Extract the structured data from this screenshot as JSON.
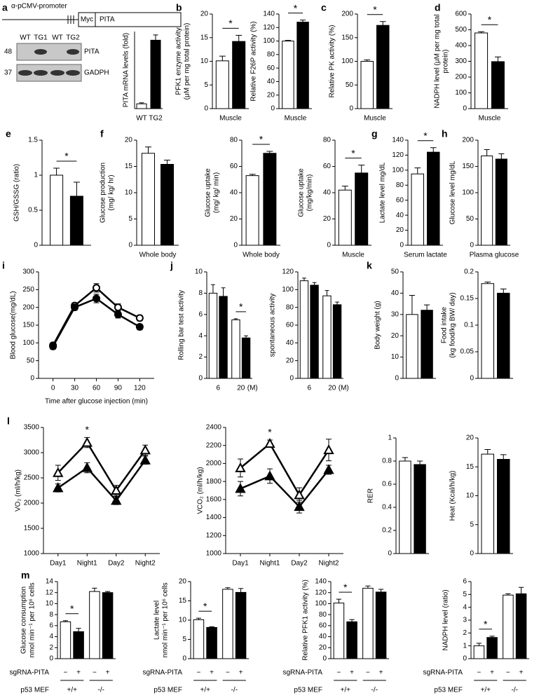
{
  "diagram": {
    "panel": "a",
    "promoter": "α-pCMV-promoter",
    "tag": "Myc",
    "gene": "PITA"
  },
  "blot": {
    "lanes": [
      "WT",
      "TG1",
      "WT",
      "TG2"
    ],
    "rows": [
      {
        "size": "48",
        "label": "PITA"
      },
      {
        "size": "37",
        "label": "GADPH"
      }
    ]
  },
  "chart_data": [
    {
      "type": "bar",
      "y_label": [
        "PITA mRNA levels (fold)"
      ],
      "categories": [
        "WT",
        "TG2"
      ],
      "values": [
        1,
        14.2
      ],
      "errors": [
        0.2,
        1.1
      ],
      "colors": [
        "#ffffff",
        "#000000"
      ],
      "ylim": [
        0,
        16
      ]
    },
    {
      "type": "bar",
      "panel": "b",
      "y_label": [
        "PFK1 enzyme activity",
        "(μM per mg total protein)"
      ],
      "categories": [
        "Muscle"
      ],
      "series": [
        {
          "color": "#ffffff",
          "values": [
            10.1
          ],
          "errors": [
            1.0
          ]
        },
        {
          "color": "#000000",
          "values": [
            14.2
          ],
          "errors": [
            1.3
          ]
        }
      ],
      "ylim": [
        0,
        20
      ],
      "yticks": [
        0,
        5,
        10,
        15,
        20
      ],
      "significance": [
        "*"
      ]
    },
    {
      "type": "bar",
      "y_label": [
        "Relative F26P activity (%)"
      ],
      "categories": [
        "Muscle"
      ],
      "series": [
        {
          "color": "#ffffff",
          "values": [
            100
          ],
          "errors": [
            1
          ]
        },
        {
          "color": "#000000",
          "values": [
            128
          ],
          "errors": [
            3
          ]
        }
      ],
      "ylim": [
        0,
        140
      ],
      "yticks": [
        0,
        20,
        40,
        60,
        80,
        100,
        120,
        140
      ],
      "significance": [
        "*"
      ]
    },
    {
      "type": "bar",
      "panel": "c",
      "y_label": [
        "Relative PK activity (%)"
      ],
      "categories": [
        "Muscle"
      ],
      "series": [
        {
          "color": "#ffffff",
          "values": [
            100
          ],
          "errors": [
            3
          ]
        },
        {
          "color": "#000000",
          "values": [
            176
          ],
          "errors": [
            8
          ]
        }
      ],
      "ylim": [
        0,
        200
      ],
      "yticks": [
        0,
        50,
        100,
        150,
        200
      ],
      "significance": [
        "*"
      ]
    },
    {
      "type": "bar",
      "panel": "d",
      "y_label": [
        "NADPH  level (μM per mg total",
        "protein)"
      ],
      "categories": [
        "Muscle"
      ],
      "series": [
        {
          "color": "#ffffff",
          "values": [
            480
          ],
          "errors": [
            8
          ]
        },
        {
          "color": "#000000",
          "values": [
            298
          ],
          "errors": [
            30
          ]
        }
      ],
      "ylim": [
        0,
        600
      ],
      "yticks": [
        0,
        100,
        200,
        300,
        400,
        500,
        600
      ],
      "significance": [
        "*"
      ]
    },
    {
      "type": "bar",
      "panel": "e",
      "y_label": [
        "GSH/GSSG (ratio)"
      ],
      "categories": [
        null
      ],
      "series": [
        {
          "color": "#ffffff",
          "values": [
            1.0
          ],
          "errors": [
            0.1
          ]
        },
        {
          "color": "#000000",
          "values": [
            0.7
          ],
          "errors": [
            0.2
          ]
        }
      ],
      "ylim": [
        0,
        1.5
      ],
      "yticks": [
        0,
        0.5,
        1,
        1.5
      ],
      "significance": [
        "*"
      ]
    },
    {
      "type": "bar",
      "panel": "f",
      "y_label": [
        "Glucose production",
        "(mg/ kg/ hr)"
      ],
      "categories": [
        "Whole body"
      ],
      "series": [
        {
          "color": "#ffffff",
          "values": [
            17.5
          ],
          "errors": [
            1.2
          ]
        },
        {
          "color": "#000000",
          "values": [
            15.4
          ],
          "errors": [
            0.8
          ]
        }
      ],
      "ylim": [
        0,
        20
      ],
      "yticks": [
        0,
        5,
        10,
        15,
        20
      ]
    },
    {
      "type": "bar",
      "y_label": [
        "Glucose uptake",
        "(mg/ kg/ min)"
      ],
      "categories": [
        "Whole body"
      ],
      "series": [
        {
          "color": "#ffffff",
          "values": [
            53
          ],
          "errors": [
            1
          ]
        },
        {
          "color": "#000000",
          "values": [
            70
          ],
          "errors": [
            1.5
          ]
        }
      ],
      "ylim": [
        0,
        80
      ],
      "yticks": [
        0,
        20,
        40,
        60,
        80
      ],
      "significance": [
        "*"
      ]
    },
    {
      "type": "bar",
      "y_label": [
        "Glucose uptake",
        "(mg/kg/min)"
      ],
      "categories": [
        "Muscle"
      ],
      "series": [
        {
          "color": "#ffffff",
          "values": [
            42
          ],
          "errors": [
            3
          ]
        },
        {
          "color": "#000000",
          "values": [
            55
          ],
          "errors": [
            6
          ]
        }
      ],
      "ylim": [
        0,
        80
      ],
      "yticks": [
        0,
        20,
        40,
        60,
        80
      ],
      "significance": [
        "*"
      ]
    },
    {
      "type": "bar",
      "panel": "g",
      "y_label": [
        "Lactate level mg/dL"
      ],
      "categories": [
        "Serum lactate"
      ],
      "series": [
        {
          "color": "#ffffff",
          "values": [
            95
          ],
          "errors": [
            8
          ]
        },
        {
          "color": "#000000",
          "values": [
            124
          ],
          "errors": [
            6
          ]
        }
      ],
      "ylim": [
        0,
        140
      ],
      "yticks": [
        0,
        20,
        40,
        60,
        80,
        100,
        120,
        140
      ],
      "significance": [
        "*"
      ]
    },
    {
      "type": "bar",
      "panel": "h",
      "y_label": [
        "Glucose level mg/dL"
      ],
      "categories": [
        "Plasma glucose"
      ],
      "series": [
        {
          "color": "#ffffff",
          "values": [
            170
          ],
          "errors": [
            12
          ]
        },
        {
          "color": "#000000",
          "values": [
            164
          ],
          "errors": [
            10
          ]
        }
      ],
      "ylim": [
        0,
        200
      ],
      "yticks": [
        0,
        50,
        100,
        150,
        200
      ]
    },
    {
      "type": "line",
      "panel": "i",
      "y_label": [
        "Blood glucose(mg/dL)"
      ],
      "x_label": "Time after glucose injection (min)",
      "x": [
        0,
        30,
        60,
        90,
        120
      ],
      "xlim": [
        -20,
        140
      ],
      "xticks": [
        0,
        30,
        60,
        90,
        120
      ],
      "series": [
        {
          "color": "#ffffff",
          "marker": "circle",
          "values": [
            93,
            205,
            255,
            200,
            170
          ],
          "errors": [
            8,
            8,
            12,
            10,
            8
          ]
        },
        {
          "color": "#000000",
          "marker": "circle",
          "values": [
            90,
            200,
            225,
            180,
            145
          ],
          "errors": [
            8,
            8,
            12,
            10,
            8
          ]
        }
      ],
      "ylim": [
        0,
        300
      ],
      "yticks": [
        0,
        50,
        100,
        150,
        200,
        250,
        300
      ]
    },
    {
      "type": "bar",
      "panel": "j",
      "y_label": [
        "Rolling bar test activity"
      ],
      "categories": [
        "6",
        "20"
      ],
      "x_unit": "(M)",
      "series": [
        {
          "color": "#ffffff",
          "values": [
            8,
            5.5
          ],
          "errors": [
            0.8,
            0.1
          ]
        },
        {
          "color": "#000000",
          "values": [
            7.7,
            3.8
          ],
          "errors": [
            0.8,
            0.2
          ]
        }
      ],
      "ylim": [
        0,
        10
      ],
      "yticks": [
        0,
        2,
        4,
        6,
        8,
        10
      ],
      "significance": [
        null,
        "*"
      ]
    },
    {
      "type": "bar",
      "y_label": [
        "spontaneous  activity"
      ],
      "categories": [
        "6",
        "20"
      ],
      "x_unit": "(M)",
      "series": [
        {
          "color": "#ffffff",
          "values": [
            110,
            93
          ],
          "errors": [
            3,
            6
          ]
        },
        {
          "color": "#000000",
          "values": [
            105,
            83
          ],
          "errors": [
            3,
            3
          ]
        }
      ],
      "ylim": [
        0,
        120
      ],
      "yticks": [
        0,
        20,
        40,
        60,
        80,
        100,
        120
      ]
    },
    {
      "type": "bar",
      "panel": "k",
      "y_label": [
        "Body weight (g)"
      ],
      "categories": [
        null
      ],
      "series": [
        {
          "color": "#ffffff",
          "values": [
            30
          ],
          "errors": [
            9
          ]
        },
        {
          "color": "#000000",
          "values": [
            32
          ],
          "errors": [
            2.5
          ]
        }
      ],
      "ylim": [
        0,
        50
      ],
      "yticks": [
        0,
        10,
        20,
        30,
        40,
        50
      ]
    },
    {
      "type": "bar",
      "y_label": [
        "Food intake",
        "(kg food/kg BW/ day)"
      ],
      "categories": [
        null
      ],
      "series": [
        {
          "color": "#ffffff",
          "values": [
            0.178
          ],
          "errors": [
            0.003
          ]
        },
        {
          "color": "#000000",
          "values": [
            0.16
          ],
          "errors": [
            0.008
          ]
        }
      ],
      "ylim": [
        0,
        0.2
      ],
      "yticks": [
        0,
        0.05,
        0.1,
        0.15,
        0.2
      ]
    },
    {
      "type": "line",
      "panel": "l",
      "y_label": [
        "VO₂  (ml/h/kg)"
      ],
      "categories": [
        "Day1",
        "Night1",
        "Day2",
        "Night2"
      ],
      "series": [
        {
          "color": "#ffffff",
          "marker": "triangle",
          "values": [
            2600,
            3200,
            2250,
            3050
          ],
          "errors": [
            150,
            100,
            100,
            100
          ]
        },
        {
          "color": "#000000",
          "marker": "triangle",
          "values": [
            2300,
            2700,
            2050,
            2850
          ],
          "errors": [
            80,
            100,
            80,
            80
          ]
        }
      ],
      "ylim": [
        1000,
        3500
      ],
      "yticks": [
        1000,
        1500,
        2000,
        2500,
        3000,
        3500
      ],
      "significance": [
        null,
        "*",
        null,
        null
      ]
    },
    {
      "type": "line",
      "y_label": [
        "VCO₂  (ml/h/kg)"
      ],
      "categories": [
        "Day1",
        "Night1",
        "Day2",
        "Night2"
      ],
      "series": [
        {
          "color": "#ffffff",
          "marker": "triangle",
          "values": [
            1950,
            2220,
            1650,
            2150
          ],
          "errors": [
            100,
            40,
            80,
            120
          ]
        },
        {
          "color": "#000000",
          "marker": "triangle",
          "values": [
            1720,
            1860,
            1520,
            1930
          ],
          "errors": [
            80,
            80,
            70,
            50
          ]
        }
      ],
      "ylim": [
        1000,
        2400
      ],
      "yticks": [
        1000,
        1200,
        1400,
        1600,
        1800,
        2000,
        2200,
        2400
      ],
      "significance": [
        null,
        "*",
        null,
        null
      ]
    },
    {
      "type": "bar",
      "y_label": [
        "RER"
      ],
      "categories": [
        null
      ],
      "series": [
        {
          "color": "#ffffff",
          "values": [
            0.8
          ],
          "errors": [
            0.03
          ]
        },
        {
          "color": "#000000",
          "values": [
            0.77
          ],
          "errors": [
            0.03
          ]
        }
      ],
      "ylim": [
        0,
        1
      ],
      "yticks": [
        0,
        0.2,
        0.4,
        0.6,
        0.8,
        1
      ]
    },
    {
      "type": "bar",
      "y_label": [
        "Heat  (Kcal/h/kg)"
      ],
      "categories": [
        null
      ],
      "series": [
        {
          "color": "#ffffff",
          "values": [
            17.2
          ],
          "errors": [
            0.8
          ]
        },
        {
          "color": "#000000",
          "values": [
            16.3
          ],
          "errors": [
            0.8
          ]
        }
      ],
      "ylim": [
        0,
        20
      ],
      "yticks": [
        0,
        5,
        10,
        15,
        20
      ]
    },
    {
      "type": "bar",
      "panel": "m",
      "y_label": [
        "Glucose consumption",
        "nmol min⁻¹ per 10⁶ cells"
      ],
      "categories": [
        "+/+",
        "-/-"
      ],
      "category_title": "p53 MEF",
      "bar_labels": [
        "−",
        "+",
        "−",
        "+"
      ],
      "bar_labels_title": "sgRNA-PITA",
      "series": [
        {
          "color": "#ffffff",
          "values": [
            6.7,
            12.2
          ],
          "errors": [
            0.2,
            0.6
          ]
        },
        {
          "color": "#000000",
          "values": [
            4.9,
            12
          ],
          "errors": [
            0.6,
            0.2
          ]
        }
      ],
      "ylim": [
        0,
        14
      ],
      "yticks": [
        0,
        2,
        4,
        6,
        8,
        10,
        12,
        14
      ],
      "significance": [
        "*",
        null
      ]
    },
    {
      "type": "bar",
      "y_label": [
        "Lactate level",
        "nmol min⁻¹ per 10⁶ cells"
      ],
      "categories": [
        "+/+",
        "-/-"
      ],
      "category_title": "p53 MEF",
      "bar_labels": [
        "−",
        "+",
        "−",
        "+"
      ],
      "bar_labels_title": "sgRNA-PITA",
      "series": [
        {
          "color": "#ffffff",
          "values": [
            10.1,
            18
          ],
          "errors": [
            0.4,
            0.4
          ]
        },
        {
          "color": "#000000",
          "values": [
            8.1,
            17.2
          ],
          "errors": [
            0.2,
            1
          ]
        }
      ],
      "ylim": [
        0,
        20
      ],
      "yticks": [
        0,
        5,
        10,
        15,
        20
      ],
      "significance": [
        "*",
        null
      ]
    },
    {
      "type": "bar",
      "y_label": [
        "Relative PFK1 activity (%)"
      ],
      "categories": [
        "+/+",
        "-/-"
      ],
      "category_title": "p53 MEF",
      "bar_labels": [
        "−",
        "+",
        "−",
        "+"
      ],
      "bar_labels_title": "sgRNA-PITA",
      "series": [
        {
          "color": "#ffffff",
          "values": [
            101,
            128
          ],
          "errors": [
            7,
            4
          ]
        },
        {
          "color": "#000000",
          "values": [
            67,
            121
          ],
          "errors": [
            4,
            5
          ]
        }
      ],
      "ylim": [
        0,
        140
      ],
      "yticks": [
        0,
        20,
        40,
        60,
        80,
        100,
        120,
        140
      ],
      "significance": [
        "*",
        null
      ]
    },
    {
      "type": "bar",
      "y_label": [
        "NADPH level (ratio)"
      ],
      "categories": [
        "+/+",
        "-/-"
      ],
      "category_title": "p53 MEF",
      "bar_labels": [
        "−",
        "+",
        "−",
        "+"
      ],
      "bar_labels_title": "sgRNA-PITA",
      "series": [
        {
          "color": "#ffffff",
          "values": [
            1,
            4.95
          ],
          "errors": [
            0.2,
            0.1
          ]
        },
        {
          "color": "#000000",
          "values": [
            1.65,
            5.05
          ],
          "errors": [
            0.1,
            0.5
          ]
        }
      ],
      "ylim": [
        0,
        6
      ],
      "yticks": [
        0,
        1,
        2,
        3,
        4,
        5,
        6
      ],
      "significance": [
        "*",
        null
      ]
    }
  ]
}
